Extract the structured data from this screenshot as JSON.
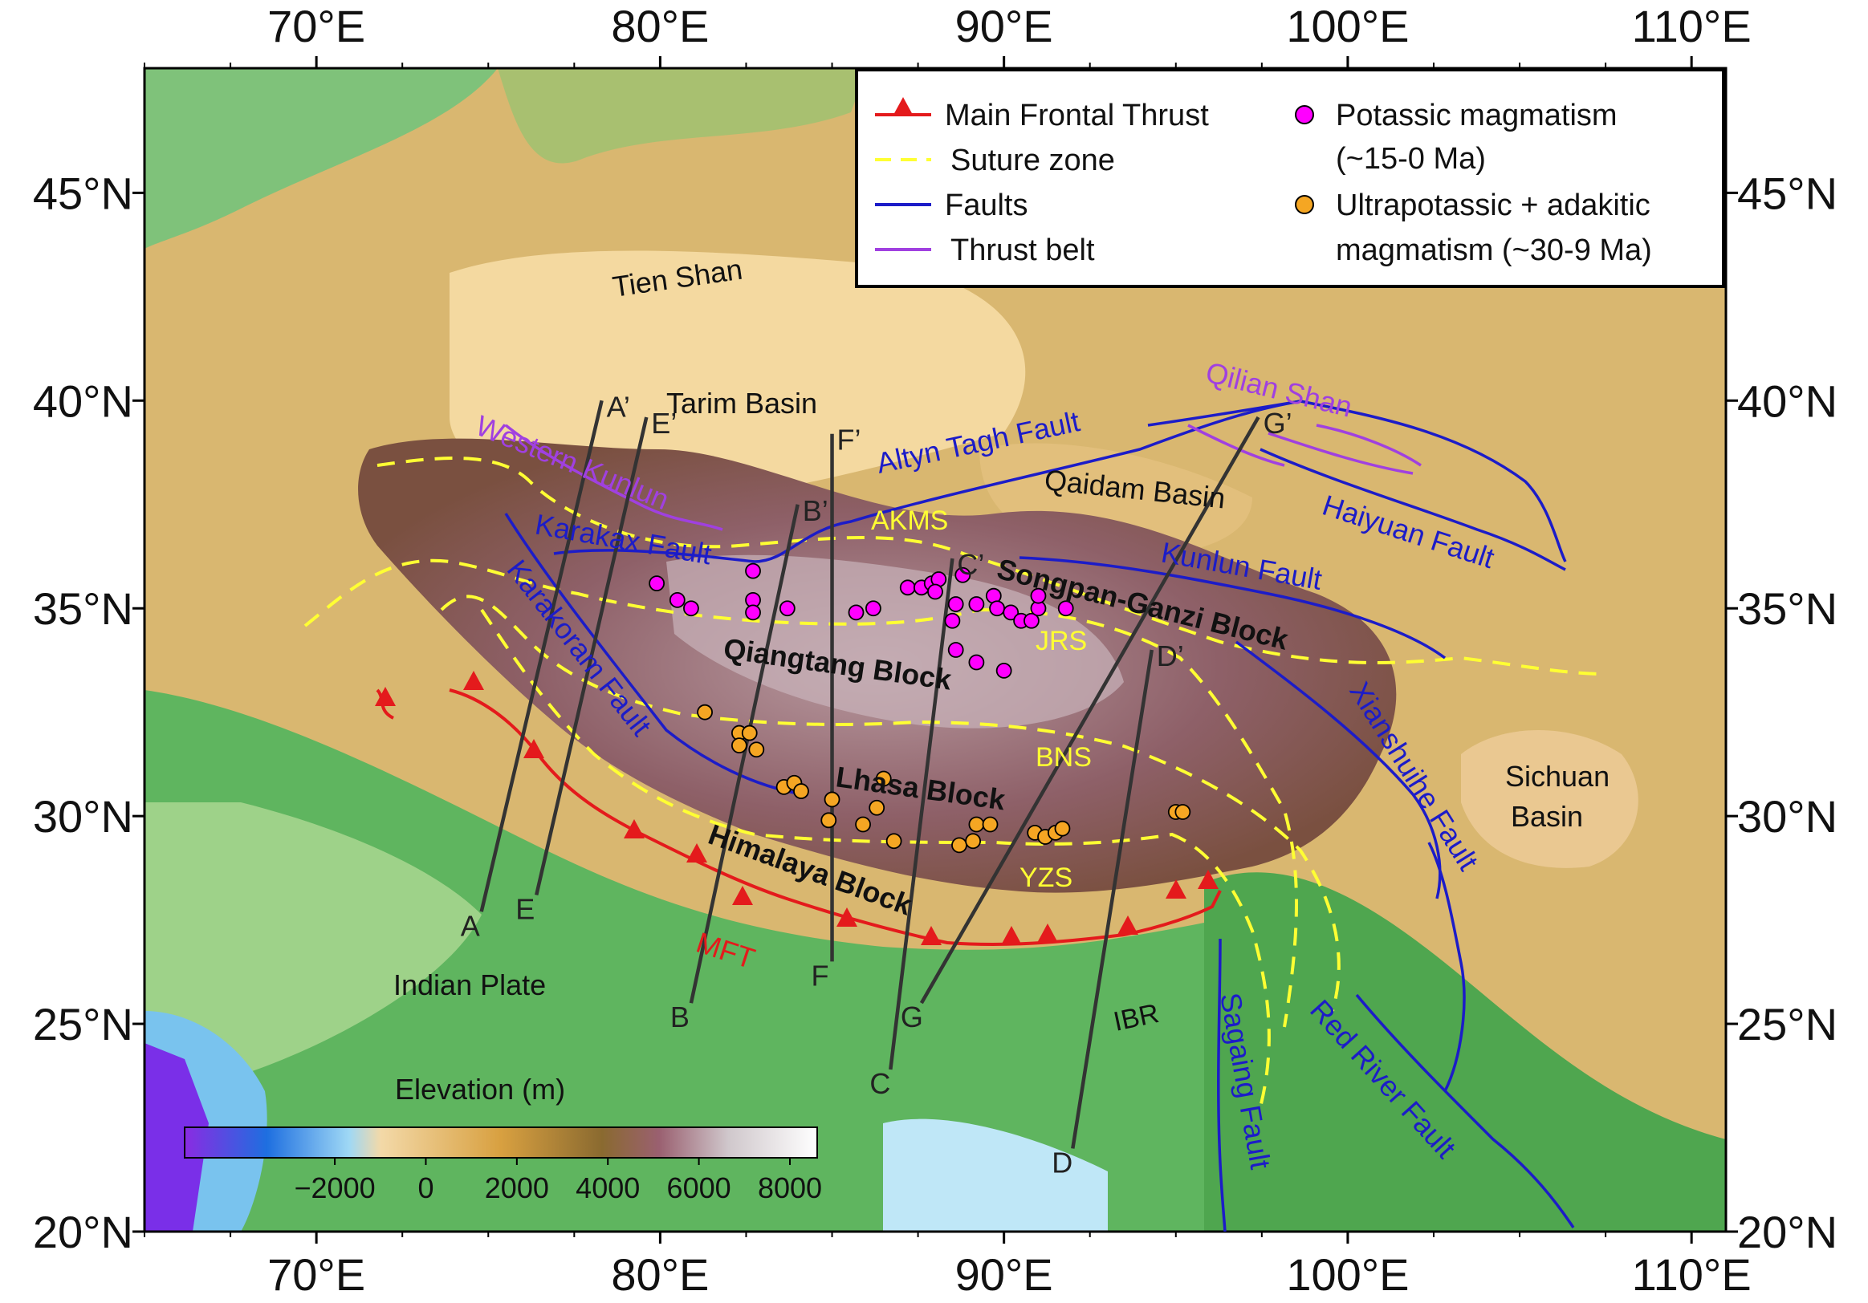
{
  "axes": {
    "lon_ticks": [
      "70°E",
      "80°E",
      "90°E",
      "100°E",
      "110°E"
    ],
    "lat_ticks": [
      "45°N",
      "40°N",
      "35°N",
      "30°N",
      "25°N",
      "20°N"
    ]
  },
  "legend": {
    "items": [
      {
        "key": "mft",
        "label": "Main Frontal Thrust",
        "color": "#e41a1c"
      },
      {
        "key": "suture",
        "label": "Suture zone",
        "color": "#ffff33"
      },
      {
        "key": "faults",
        "label": "Faults",
        "color": "#1c1cc8"
      },
      {
        "key": "thrust",
        "label": "Thrust belt",
        "color": "#a040e0"
      },
      {
        "key": "potassic",
        "label": "Potassic magmatism",
        "label2": "(~15-0 Ma)",
        "color": "#ff00ff"
      },
      {
        "key": "ultra",
        "label": "Ultrapotassic + adakitic",
        "label2": "magmatism (~30-9 Ma)",
        "color": "#f5a623"
      }
    ]
  },
  "region_labels": {
    "tien_shan": "Tien Shan",
    "tarim_basin": "Tarim Basin",
    "qaidam_basin": "Qaidam Basin",
    "sichuan_basin_1": "Sichuan",
    "sichuan_basin_2": "Basin",
    "indian_plate": "Indian Plate",
    "ibr": "IBR"
  },
  "block_labels": {
    "songpan": "Songpan-Ganzi Block",
    "qiangtang": "Qiangtang Block",
    "lhasa": "Lhasa Block",
    "himalaya": "Himalaya Block"
  },
  "fault_labels": {
    "altyn_tagh": "Altyn Tagh Fault",
    "karakax": "Karakax Fault",
    "karakoram": "Karakoram Fault",
    "kunlun": "Kunlun Fault",
    "haiyuan": "Haiyuan Fault",
    "xianshuihe": "Xianshuihe Fault",
    "red_river": "Red River Fault",
    "sagaing": "Sagaing Fault"
  },
  "thrust_labels": {
    "western_kunlun": "Western Kunlun",
    "qilian_shan": "Qilian Shan"
  },
  "suture_labels": {
    "akms": "AKMS",
    "jrs": "JRS",
    "bns": "BNS",
    "yzs": "YZS"
  },
  "mft_label": "MFT",
  "profiles": [
    {
      "start": "A",
      "end": "A’",
      "from": [
        74.8,
        27.7
      ],
      "to": [
        78.3,
        40.0
      ]
    },
    {
      "start": "E",
      "end": "E’",
      "from": [
        76.4,
        28.1
      ],
      "to": [
        79.6,
        39.6
      ]
    },
    {
      "start": "B",
      "end": "B’",
      "from": [
        80.9,
        25.5
      ],
      "to": [
        84.0,
        37.5
      ]
    },
    {
      "start": "F",
      "end": "F’",
      "from": [
        85.0,
        26.5
      ],
      "to": [
        85.0,
        39.2
      ]
    },
    {
      "start": "C",
      "end": "C’",
      "from": [
        86.7,
        23.9
      ],
      "to": [
        88.5,
        36.2
      ]
    },
    {
      "start": "G",
      "end": "G’",
      "from": [
        87.6,
        25.5
      ],
      "to": [
        97.4,
        39.6
      ]
    },
    {
      "start": "D",
      "end": "D’",
      "from": [
        92.0,
        22.0
      ],
      "to": [
        94.3,
        34.0
      ]
    }
  ],
  "colorbar": {
    "title": "Elevation (m)",
    "ticks": [
      "−2000",
      "0",
      "2000",
      "4000",
      "6000",
      "8000"
    ]
  }
}
